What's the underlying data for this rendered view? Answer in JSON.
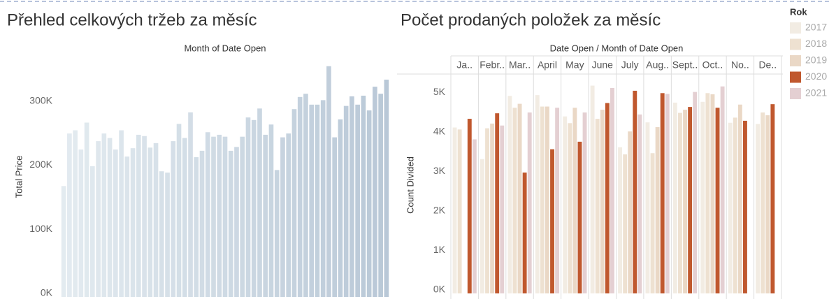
{
  "chart_data": [
    {
      "type": "bar",
      "title": "Přehled celkových tržeb za měsíc",
      "header": "Month of Date Open",
      "ylabel": "Total Price",
      "categories": [
        null,
        null,
        null,
        null,
        null,
        null,
        null,
        null,
        null,
        null,
        null,
        null,
        null,
        null,
        null,
        null,
        null,
        null,
        null,
        null,
        null,
        null,
        null,
        null,
        null,
        null,
        null,
        null,
        null,
        null,
        null,
        null,
        null,
        null,
        null,
        null,
        null,
        null,
        null,
        null,
        null,
        null,
        null,
        null,
        null,
        null,
        null,
        null,
        null,
        null,
        null,
        null,
        null,
        null,
        null,
        null,
        null
      ],
      "values": [
        173000,
        255000,
        260000,
        230000,
        272000,
        204000,
        243000,
        255000,
        248000,
        230000,
        260000,
        219000,
        232000,
        253000,
        251000,
        233000,
        240000,
        196000,
        194000,
        243000,
        270000,
        248000,
        288000,
        218000,
        228000,
        257000,
        250000,
        253000,
        250000,
        228000,
        234000,
        250000,
        280000,
        276000,
        294000,
        253000,
        269000,
        198000,
        249000,
        255000,
        293000,
        312000,
        317000,
        300000,
        300000,
        307000,
        360000,
        249000,
        277000,
        298000,
        313000,
        300000,
        314000,
        291000,
        328000,
        317000,
        339000
      ],
      "color_range": [
        "#e3ebf0",
        "#b9c8d7"
      ],
      "ylim": [
        0,
        375000
      ],
      "yticks": [
        {
          "value": 0,
          "label": "0K"
        },
        {
          "value": 100000,
          "label": "100K"
        },
        {
          "value": 200000,
          "label": "200K"
        },
        {
          "value": 300000,
          "label": "300K"
        }
      ],
      "grid": false
    },
    {
      "type": "grouped_bar",
      "title": "Počet prodaných položek za měsíc",
      "header": "Date Open  /  Month of Date Open",
      "ylabel": "Count Divided",
      "categories": [
        "Ja..",
        "Febr..",
        "Mar..",
        "April",
        "May",
        "June",
        "July",
        "Aug..",
        "Sept..",
        "Oct..",
        "No..",
        "De.."
      ],
      "series": [
        {
          "name": "2017",
          "color": "#f2ece3",
          "values": [
            4200,
            3400,
            5000,
            5020,
            4480,
            5260,
            3700,
            4330,
            4830,
            4850,
            4320,
            4290
          ]
        },
        {
          "name": "2018",
          "color": "#eee1d1",
          "values": [
            4150,
            4180,
            4700,
            4730,
            4310,
            4420,
            3520,
            3550,
            4570,
            5070,
            4450,
            4580
          ]
        },
        {
          "name": "2019",
          "color": "#ead8c6",
          "values": [
            null,
            4300,
            4800,
            4730,
            4700,
            4650,
            4100,
            4210,
            4650,
            5040,
            4780,
            4510
          ]
        },
        {
          "name": "2020",
          "color": "#c0582e",
          "values": [
            4420,
            4560,
            3060,
            3650,
            3840,
            4820,
            5130,
            5070,
            4720,
            4700,
            4370,
            4790
          ]
        },
        {
          "name": "2021",
          "color": "#e4cfd2",
          "values": [
            3900,
            4250,
            4580,
            4700,
            4580,
            5200,
            4530,
            5050,
            5100,
            5240,
            null,
            null
          ]
        }
      ],
      "legend_title": "Rok",
      "ylim": [
        0,
        5500
      ],
      "yticks": [
        {
          "value": 0,
          "label": "0K"
        },
        {
          "value": 1000,
          "label": "1K"
        },
        {
          "value": 2000,
          "label": "2K"
        },
        {
          "value": 3000,
          "label": "3K"
        },
        {
          "value": 4000,
          "label": "4K"
        },
        {
          "value": 5000,
          "label": "5K"
        }
      ],
      "grid": false
    }
  ]
}
